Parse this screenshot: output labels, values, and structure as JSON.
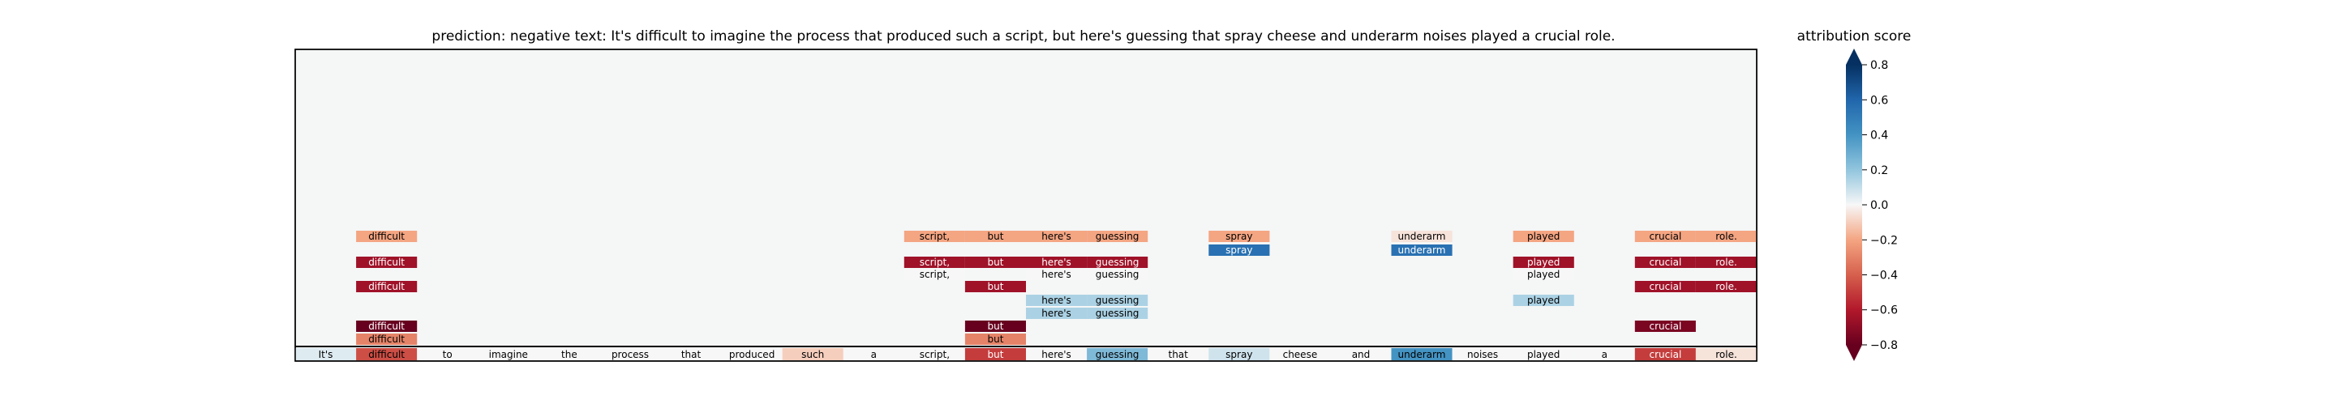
{
  "title": "prediction:  negative     text:  It's difficult to imagine the process that produced such a script, but here's guessing that spray cheese and underarm noises played a crucial role.",
  "colorbar": {
    "label": "attribution score",
    "ticks": [
      "0.8",
      "0.6",
      "0.4",
      "0.2",
      "0.0",
      "−0.2",
      "−0.4",
      "−0.6",
      "−0.8"
    ],
    "tick_values": [
      0.8,
      0.6,
      0.4,
      0.2,
      0.0,
      -0.2,
      -0.4,
      -0.6,
      -0.8
    ],
    "range": [
      -0.8,
      0.8
    ],
    "colormap": "RdBu",
    "extend": "both"
  },
  "chart_data": {
    "type": "heatmap",
    "tokens": [
      "It's",
      "difficult",
      "to",
      "imagine",
      "the",
      "process",
      "that",
      "produced",
      "such",
      "a",
      "script,",
      "but",
      "here's",
      "guessing",
      "that",
      "spray",
      "cheese",
      "and",
      "underarm",
      "noises",
      "played",
      "a",
      "crucial",
      "role."
    ],
    "token_scores": [
      0.05,
      -0.45,
      0.0,
      0.0,
      0.0,
      0.0,
      0.0,
      0.0,
      -0.1,
      0.0,
      0.0,
      -0.5,
      0.0,
      0.25,
      0.0,
      0.08,
      0.0,
      0.0,
      0.4,
      0.0,
      0.0,
      0.0,
      -0.5,
      -0.05
    ],
    "rows": [
      {
        "cells": [
          {
            "i": 1,
            "v": -0.2
          },
          {
            "i": 10,
            "v": -0.2
          },
          {
            "i": 11,
            "v": -0.2
          },
          {
            "i": 12,
            "v": -0.2
          },
          {
            "i": 13,
            "v": -0.2
          },
          {
            "i": 15,
            "v": -0.2
          },
          {
            "i": 18,
            "v": -0.05
          },
          {
            "i": 20,
            "v": -0.2
          },
          {
            "i": 22,
            "v": -0.2
          },
          {
            "i": 23,
            "v": -0.2
          }
        ]
      },
      {
        "cells": [
          {
            "i": 15,
            "v": 0.55
          },
          {
            "i": 18,
            "v": 0.55
          }
        ]
      },
      {
        "cells": [
          {
            "i": 1,
            "v": -0.65
          },
          {
            "i": 10,
            "v": -0.65
          },
          {
            "i": 11,
            "v": -0.65
          },
          {
            "i": 12,
            "v": -0.65
          },
          {
            "i": 13,
            "v": -0.65
          },
          {
            "i": 20,
            "v": -0.65
          },
          {
            "i": 22,
            "v": -0.65
          },
          {
            "i": 23,
            "v": -0.65
          }
        ]
      },
      {
        "cells": [
          {
            "i": 10,
            "v": 0.0
          },
          {
            "i": 12,
            "v": 0.0
          },
          {
            "i": 13,
            "v": 0.0
          },
          {
            "i": 20,
            "v": 0.0
          }
        ]
      },
      {
        "cells": [
          {
            "i": 1,
            "v": -0.65
          },
          {
            "i": 11,
            "v": -0.65
          },
          {
            "i": 22,
            "v": -0.65
          },
          {
            "i": 23,
            "v": -0.65
          }
        ]
      },
      {
        "cells": [
          {
            "i": 12,
            "v": 0.15
          },
          {
            "i": 13,
            "v": 0.15
          },
          {
            "i": 20,
            "v": 0.15
          }
        ]
      },
      {
        "cells": [
          {
            "i": 12,
            "v": 0.15
          },
          {
            "i": 13,
            "v": 0.15
          }
        ]
      },
      {
        "cells": [
          {
            "i": 1,
            "v": -0.8
          },
          {
            "i": 11,
            "v": -0.8
          },
          {
            "i": 22,
            "v": -0.75
          }
        ]
      },
      {
        "cells": [
          {
            "i": 1,
            "v": -0.3
          },
          {
            "i": 11,
            "v": -0.3
          }
        ]
      }
    ]
  }
}
